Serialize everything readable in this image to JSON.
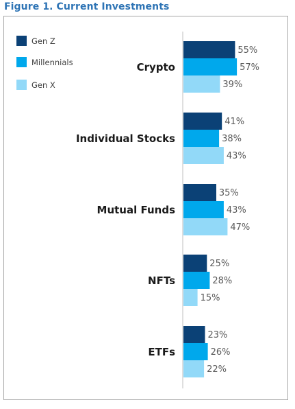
{
  "figure_title": "Figure 1. Current Investments",
  "colors": {
    "gen_z": "#0b4176",
    "millennials": "#00a8ec",
    "gen_x": "#92d9f8",
    "category_text": "#1a1a1a",
    "value_text": "#595959",
    "title": "#2e74b5"
  },
  "chart_data": {
    "type": "bar",
    "orientation": "horizontal",
    "title": "",
    "xlabel": "",
    "ylabel": "",
    "xlim": [
      0,
      60
    ],
    "grid": false,
    "legend": "top-left",
    "categories": [
      "Crypto",
      "Individual Stocks",
      "Mutual Funds",
      "NFTs",
      "ETFs"
    ],
    "series": [
      {
        "name": "Gen Z",
        "values": [
          55,
          41,
          35,
          25,
          23
        ],
        "labels": [
          "55%",
          "41%",
          "35%",
          "25%",
          "23%"
        ]
      },
      {
        "name": "Millennials",
        "values": [
          57,
          38,
          43,
          28,
          26
        ],
        "labels": [
          "57%",
          "38%",
          "43%",
          "28%",
          "26%"
        ]
      },
      {
        "name": "Gen X",
        "values": [
          39,
          43,
          47,
          15,
          22
        ],
        "labels": [
          "39%",
          "43%",
          "47%",
          "15%",
          "22%"
        ]
      }
    ]
  }
}
